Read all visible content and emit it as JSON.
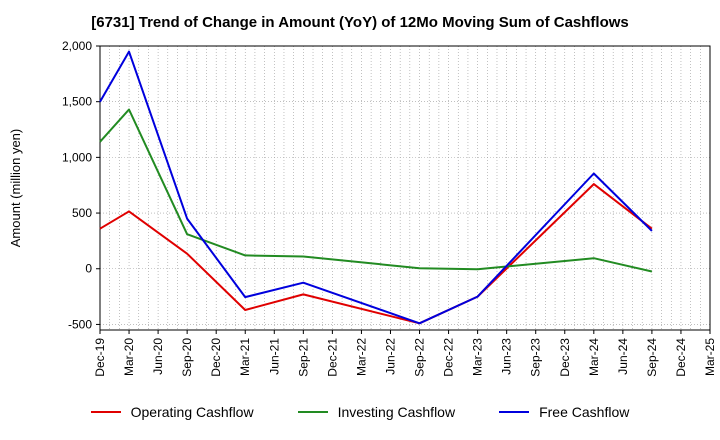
{
  "chart_data": {
    "type": "line",
    "title": "[6731]  Trend of Change in Amount (YoY) of 12Mo Moving Sum of Cashflows",
    "ylabel": "Amount (million yen)",
    "xlabel": "",
    "ylim": [
      -550,
      2000
    ],
    "yticks": [
      -500,
      0,
      500,
      1000,
      1500,
      2000
    ],
    "ytick_labels": [
      "-500",
      "0",
      "500",
      "1,000",
      "1,500",
      "2,000"
    ],
    "categories": [
      "Dec-19",
      "Mar-20",
      "Jun-20",
      "Sep-20",
      "Dec-20",
      "Mar-21",
      "Jun-21",
      "Sep-21",
      "Dec-21",
      "Mar-22",
      "Jun-22",
      "Sep-22",
      "Dec-22",
      "Mar-23",
      "Jun-23",
      "Sep-23",
      "Dec-23",
      "Mar-24",
      "Jun-24",
      "Sep-24",
      "Dec-24",
      "Mar-25"
    ],
    "series": [
      {
        "name": "Operating Cashflow",
        "color": "#e00000",
        "values": [
          360,
          515,
          null,
          135,
          null,
          -370,
          null,
          -230,
          null,
          null,
          null,
          -490,
          null,
          -250,
          null,
          null,
          null,
          760,
          null,
          360,
          null,
          null
        ]
      },
      {
        "name": "Investing Cashflow",
        "color": "#228b22",
        "values": [
          1140,
          1430,
          null,
          310,
          null,
          120,
          null,
          110,
          null,
          null,
          null,
          5,
          null,
          -5,
          null,
          null,
          null,
          95,
          null,
          -25,
          null,
          null
        ]
      },
      {
        "name": "Free Cashflow",
        "color": "#0000dd",
        "values": [
          1500,
          1950,
          null,
          450,
          null,
          -255,
          null,
          -125,
          null,
          null,
          null,
          -490,
          null,
          -250,
          null,
          null,
          null,
          855,
          null,
          340,
          null,
          null
        ]
      }
    ],
    "grid": true,
    "legend_position": "bottom"
  }
}
